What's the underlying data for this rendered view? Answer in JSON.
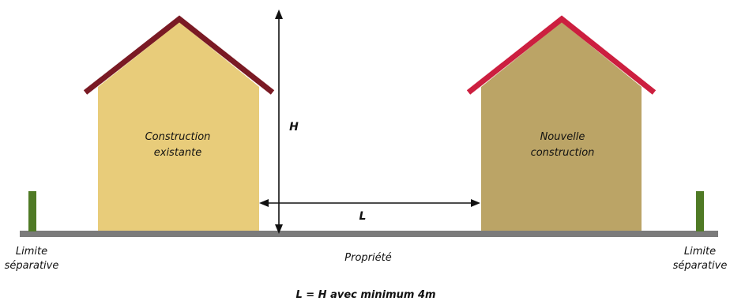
{
  "labels": {
    "existing_building_line1": "Construction",
    "existing_building_line2": "existante",
    "new_building_line1": "Nouvelle",
    "new_building_line2": "construction",
    "height": "H",
    "distance": "L",
    "property": "Propriété",
    "boundary_left_line1": "Limite",
    "boundary_left_line2": "séparative",
    "boundary_right_line1": "Limite",
    "boundary_right_line2": "séparative",
    "rule": "L = H avec minimum 4m"
  },
  "colors": {
    "existing_wall": "#e8cc7a",
    "existing_roof": "#7a1a24",
    "new_wall": "#bba466",
    "new_roof": "#cc1f3f",
    "ground": "#7b7b7b",
    "boundary_post": "#4f7a25",
    "arrow": "#111111"
  }
}
